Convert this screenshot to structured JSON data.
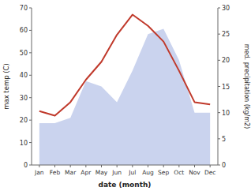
{
  "chart_data": {
    "type": "line",
    "xlabel": "date (month)",
    "ylabel": "max temp (C)",
    "y2label": "med. precipitation (kg/m2)",
    "categories": [
      "Jan",
      "Feb",
      "Mar",
      "Apr",
      "May",
      "Jun",
      "Jul",
      "Aug",
      "Sep",
      "Oct",
      "Nov",
      "Dec"
    ],
    "series": [
      {
        "type": "area",
        "color": "#b8c4e8",
        "axis": "y2",
        "values": [
          8,
          8,
          9,
          16,
          15,
          12,
          18,
          25,
          26,
          20,
          10,
          10
        ]
      },
      {
        "type": "line",
        "color": "#c0392b",
        "values": [
          24,
          22,
          28,
          38,
          46,
          58,
          67,
          62,
          55,
          42,
          28,
          27
        ]
      }
    ],
    "ylim": [
      0,
      70
    ],
    "yticks": [
      0,
      10,
      20,
      30,
      40,
      50,
      60,
      70
    ],
    "y2lim": [
      0,
      30
    ],
    "y2ticks": [
      0,
      5,
      10,
      15,
      20,
      25,
      30
    ]
  }
}
